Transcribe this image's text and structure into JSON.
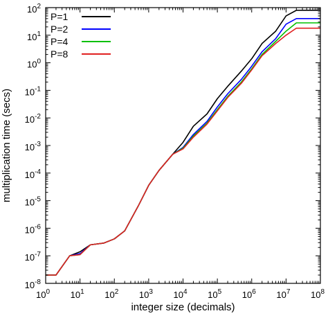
{
  "chart_data": {
    "type": "line",
    "title": "",
    "xlabel": "integer size (decimals)",
    "ylabel": "multiplication time (secs)",
    "x_scale": "log10",
    "y_scale": "log10",
    "xlim": [
      1,
      100000000
    ],
    "ylim": [
      1e-08,
      100
    ],
    "x_ticks": [
      {
        "value": 1,
        "base": "10",
        "exp": "0"
      },
      {
        "value": 10,
        "base": "10",
        "exp": "1"
      },
      {
        "value": 100,
        "base": "10",
        "exp": "2"
      },
      {
        "value": 1000,
        "base": "10",
        "exp": "3"
      },
      {
        "value": 10000,
        "base": "10",
        "exp": "4"
      },
      {
        "value": 100000,
        "base": "10",
        "exp": "5"
      },
      {
        "value": 1000000,
        "base": "10",
        "exp": "6"
      },
      {
        "value": 10000000,
        "base": "10",
        "exp": "7"
      },
      {
        "value": 100000000,
        "base": "10",
        "exp": "8"
      }
    ],
    "y_ticks": [
      {
        "value": 1e-08,
        "base": "10",
        "exp": "-8"
      },
      {
        "value": 1e-07,
        "base": "10",
        "exp": "-7"
      },
      {
        "value": 1e-06,
        "base": "10",
        "exp": "-6"
      },
      {
        "value": 1e-05,
        "base": "10",
        "exp": "-5"
      },
      {
        "value": 0.0001,
        "base": "10",
        "exp": "-4"
      },
      {
        "value": 0.001,
        "base": "10",
        "exp": "-3"
      },
      {
        "value": 0.01,
        "base": "10",
        "exp": "-2"
      },
      {
        "value": 0.1,
        "base": "10",
        "exp": "-1"
      },
      {
        "value": 1,
        "base": "10",
        "exp": "0"
      },
      {
        "value": 10,
        "base": "10",
        "exp": "1"
      },
      {
        "value": 100,
        "base": "10",
        "exp": "2"
      }
    ],
    "grid": false,
    "legend_position": "top-left",
    "series": [
      {
        "name": "P=1",
        "color": "#000000",
        "x": [
          1,
          2,
          5,
          10,
          20,
          50,
          100,
          200,
          500,
          1000,
          2000,
          5000,
          10000,
          20000,
          50000,
          100000,
          200000,
          500000,
          1000000,
          2000000,
          5000000,
          10000000,
          20000000,
          50000000,
          100000000
        ],
        "y": [
          2e-08,
          2e-08,
          1e-07,
          1.4e-07,
          2.5e-07,
          2.9e-07,
          4.1e-07,
          8e-07,
          6.5e-06,
          3.6e-05,
          0.000125,
          0.00048,
          0.0013,
          0.005,
          0.014,
          0.05,
          0.14,
          0.5,
          1.4,
          5.0,
          14,
          50,
          80,
          80,
          80
        ]
      },
      {
        "name": "P=2",
        "color": "#0000ff",
        "x": [
          1,
          2,
          5,
          10,
          20,
          50,
          100,
          200,
          500,
          1000,
          2000,
          5000,
          10000,
          20000,
          50000,
          100000,
          200000,
          500000,
          1000000,
          2000000,
          5000000,
          10000000,
          20000000,
          50000000,
          100000000
        ],
        "y": [
          2e-08,
          2e-08,
          1e-07,
          1.2e-07,
          2.5e-07,
          2.9e-07,
          4.1e-07,
          8e-07,
          6.5e-06,
          3.6e-05,
          0.000125,
          0.00048,
          0.00085,
          0.0025,
          0.0075,
          0.025,
          0.075,
          0.25,
          0.75,
          2.5,
          7.5,
          25,
          40,
          40,
          40
        ]
      },
      {
        "name": "P=4",
        "color": "#00c000",
        "x": [
          1,
          2,
          5,
          10,
          20,
          50,
          100,
          200,
          500,
          1000,
          2000,
          5000,
          10000,
          20000,
          50000,
          100000,
          200000,
          500000,
          1000000,
          2000000,
          5000000,
          10000000,
          20000000,
          50000000,
          100000000
        ],
        "y": [
          2e-08,
          2e-08,
          1e-07,
          1.1e-07,
          2.5e-07,
          2.9e-07,
          4.1e-07,
          8e-07,
          6.5e-06,
          3.6e-05,
          0.000125,
          0.00048,
          0.0008,
          0.0022,
          0.0065,
          0.02,
          0.06,
          0.2,
          0.6,
          2.0,
          6.0,
          14,
          28,
          28,
          28
        ]
      },
      {
        "name": "P=8",
        "color": "#e02020",
        "x": [
          1,
          2,
          5,
          10,
          20,
          50,
          100,
          200,
          500,
          1000,
          2000,
          5000,
          10000,
          20000,
          50000,
          100000,
          200000,
          500000,
          1000000,
          2000000,
          5000000,
          10000000,
          20000000,
          50000000,
          100000000
        ],
        "y": [
          2e-08,
          2e-08,
          1e-07,
          1.1e-07,
          2.5e-07,
          2.9e-07,
          4.1e-07,
          8e-07,
          6.5e-06,
          3.6e-05,
          0.000125,
          0.00048,
          0.00075,
          0.002,
          0.006,
          0.018,
          0.055,
          0.18,
          0.55,
          1.8,
          5.0,
          10,
          18,
          18,
          18
        ]
      }
    ]
  }
}
